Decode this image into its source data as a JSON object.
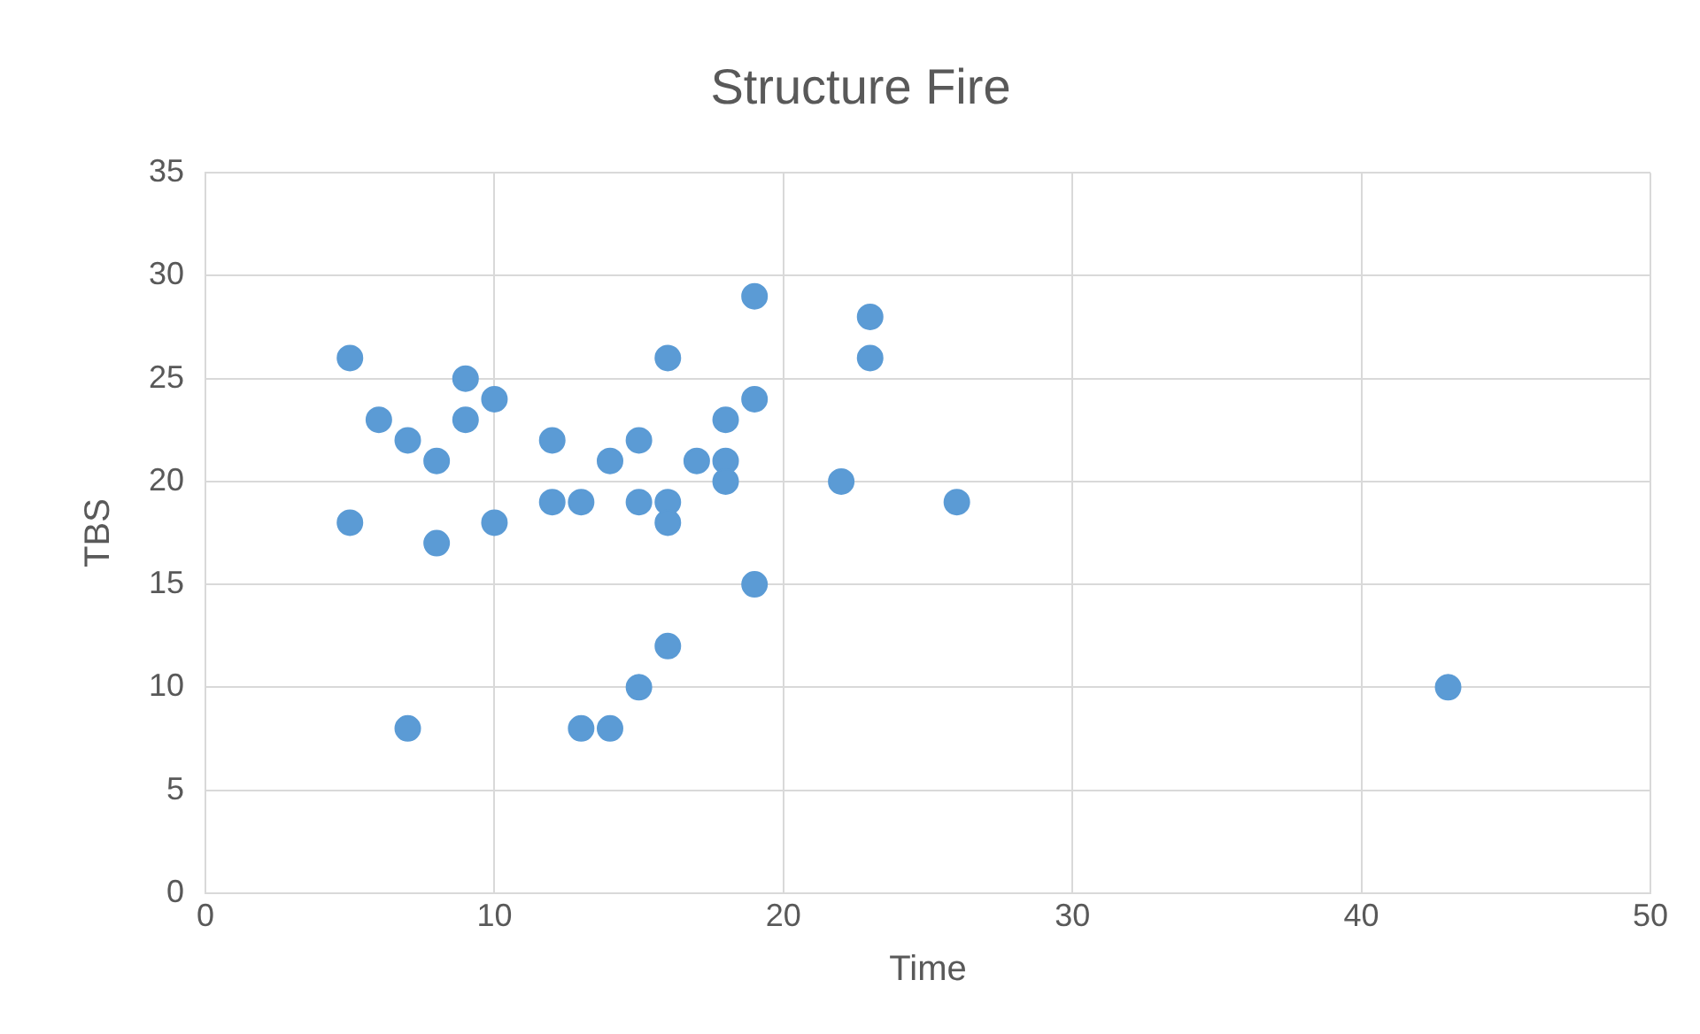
{
  "chart_data": {
    "type": "scatter",
    "title": "Structure Fire",
    "xlabel": "Time",
    "ylabel": "TBS",
    "x": [
      5,
      5,
      6,
      7,
      7,
      8,
      8,
      9,
      9,
      10,
      10,
      12,
      12,
      13,
      13,
      14,
      14,
      15,
      15,
      15,
      16,
      16,
      16,
      16,
      17,
      18,
      18,
      18,
      19,
      19,
      19,
      22,
      23,
      23,
      26,
      43
    ],
    "series": [
      {
        "color": "#5b9bd5",
        "values": [
          26,
          18,
          23,
          22,
          8,
          21,
          17,
          25,
          23,
          24,
          18,
          22,
          19,
          19,
          8,
          21,
          8,
          22,
          19,
          10,
          26,
          19,
          18,
          12,
          21,
          23,
          21,
          20,
          29,
          24,
          15,
          20,
          28,
          26,
          19,
          10
        ]
      }
    ],
    "xlim": [
      0,
      50
    ],
    "xticks": [
      0,
      10,
      20,
      30,
      40,
      50
    ],
    "ylim": [
      0,
      35
    ],
    "yticks": [
      0,
      5,
      10,
      15,
      20,
      25,
      30,
      35
    ],
    "grid": true,
    "legend": false,
    "marker": "circle"
  }
}
